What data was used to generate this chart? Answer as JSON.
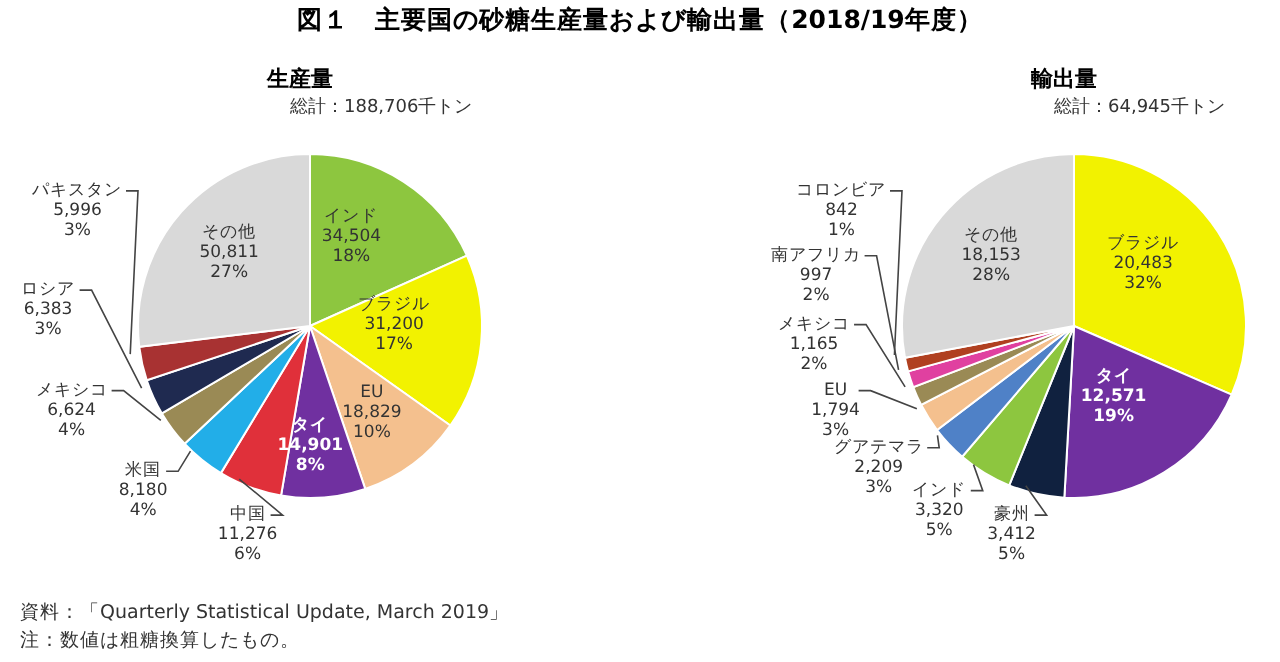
{
  "chart_data": [
    {
      "type": "pie",
      "title": "図１　主要国の砂糖生産量および輸出量（2018/19年度）",
      "subtitle": "生産量",
      "categories": [
        "インド",
        "ブラジル",
        "EU",
        "タイ",
        "中国",
        "米国",
        "メキシコ",
        "ロシア",
        "パキスタン",
        "その他"
      ],
      "values": [
        34504,
        31200,
        18829,
        14901,
        11276,
        8180,
        6624,
        6383,
        5996,
        50811
      ],
      "value_labels": [
        "34,504\n18%",
        "31,200\n17%",
        "18,829\n10%",
        "14,901\n8%",
        "11,276\n6%",
        "8,180\n4%",
        "6,624\n4%",
        "6,383\n3%",
        "5,996\n3%",
        "50,811\n27%"
      ],
      "colors": [
        "#8dc63f",
        "#f2f200",
        "#f4c08e",
        "#7030a0",
        "#e0303a",
        "#22aee8",
        "#9a8a55",
        "#1f2a50",
        "#a83232",
        "#d9d9d9"
      ],
      "annotations": [
        "総計：188,706千トン",
        "資料：「Quarterly Statistical Update, March 2019」",
        "注：数値は粗糖換算したもの。"
      ],
      "legend": false
    },
    {
      "type": "pie",
      "subtitle": "輸出量",
      "categories": [
        "ブラジル",
        "タイ",
        "豪州",
        "インド",
        "グアテマラ",
        "EU",
        "メキシコ",
        "南アフリカ",
        "コロンビア",
        "その他"
      ],
      "values": [
        20483,
        12571,
        3412,
        3320,
        2209,
        1794,
        1165,
        997,
        842,
        18153
      ],
      "value_labels": [
        "20,483\n32%",
        "12,571\n19%",
        "3,412\n5%",
        "3,320\n5%",
        "2,209\n3%",
        "1,794\n3%",
        "1,165\n2%",
        "997\n2%",
        "842\n1%",
        "18,153\n28%"
      ],
      "colors": [
        "#f2f200",
        "#7030a0",
        "#10213f",
        "#8dc63f",
        "#4f81c7",
        "#f4c08e",
        "#9a8a55",
        "#e040a0",
        "#b04020",
        "#d9d9d9"
      ],
      "annotations": [
        "総計：64,945千トン"
      ],
      "legend": false
    }
  ]
}
